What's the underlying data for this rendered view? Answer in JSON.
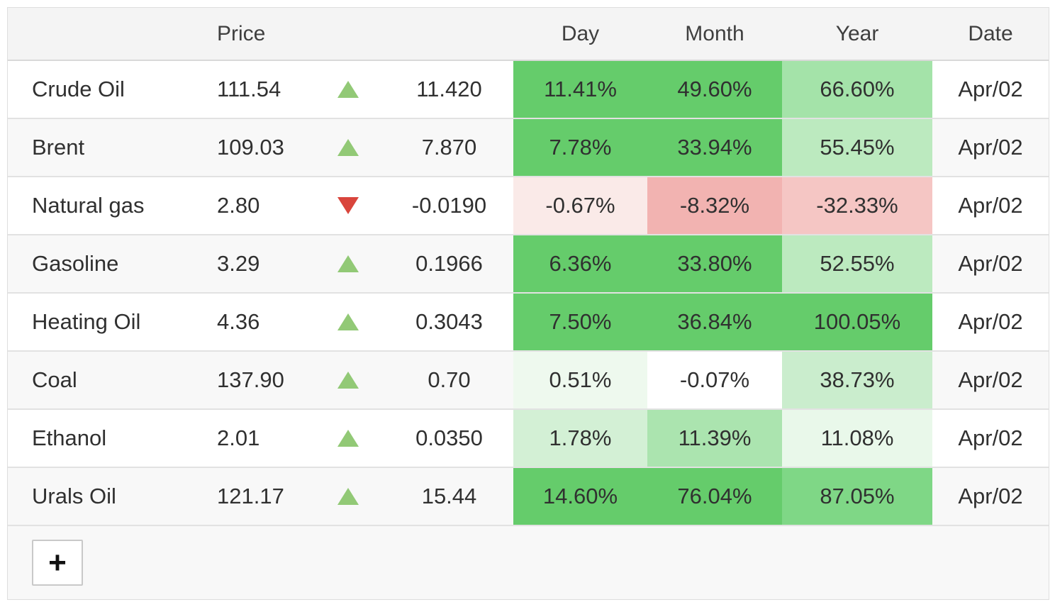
{
  "header": {
    "price": "Price",
    "day": "Day",
    "month": "Month",
    "year": "Year",
    "date": "Date"
  },
  "rows": [
    {
      "name": "Crude Oil",
      "price": "111.54",
      "direction": "up",
      "change": "11.420",
      "day": {
        "text": "11.41%",
        "bg": "#65cc6b"
      },
      "month": {
        "text": "49.60%",
        "bg": "#65cc6b"
      },
      "year": {
        "text": "66.60%",
        "bg": "#a4e3a9"
      },
      "date": "Apr/02"
    },
    {
      "name": "Brent",
      "price": "109.03",
      "direction": "up",
      "change": "7.870",
      "day": {
        "text": "7.78%",
        "bg": "#65cc6b"
      },
      "month": {
        "text": "33.94%",
        "bg": "#65cc6b"
      },
      "year": {
        "text": "55.45%",
        "bg": "#bceabf"
      },
      "date": "Apr/02"
    },
    {
      "name": "Natural gas",
      "price": "2.80",
      "direction": "down",
      "change": "-0.0190",
      "day": {
        "text": "-0.67%",
        "bg": "#faeae8"
      },
      "month": {
        "text": "-8.32%",
        "bg": "#f2b3b1"
      },
      "year": {
        "text": "-32.33%",
        "bg": "#f5c6c4"
      },
      "date": "Apr/02"
    },
    {
      "name": "Gasoline",
      "price": "3.29",
      "direction": "up",
      "change": "0.1966",
      "day": {
        "text": "6.36%",
        "bg": "#65cc6b"
      },
      "month": {
        "text": "33.80%",
        "bg": "#65cc6b"
      },
      "year": {
        "text": "52.55%",
        "bg": "#bceabf"
      },
      "date": "Apr/02"
    },
    {
      "name": "Heating Oil",
      "price": "4.36",
      "direction": "up",
      "change": "0.3043",
      "day": {
        "text": "7.50%",
        "bg": "#65cc6b"
      },
      "month": {
        "text": "36.84%",
        "bg": "#65cc6b"
      },
      "year": {
        "text": "100.05%",
        "bg": "#65cc6b"
      },
      "date": "Apr/02"
    },
    {
      "name": "Coal",
      "price": "137.90",
      "direction": "up",
      "change": "0.70",
      "day": {
        "text": "0.51%",
        "bg": "#eef9ee"
      },
      "month": {
        "text": "-0.07%",
        "bg": "#ffffff"
      },
      "year": {
        "text": "38.73%",
        "bg": "#caedcd"
      },
      "date": "Apr/02"
    },
    {
      "name": "Ethanol",
      "price": "2.01",
      "direction": "up",
      "change": "0.0350",
      "day": {
        "text": "1.78%",
        "bg": "#d3f0d5"
      },
      "month": {
        "text": "11.39%",
        "bg": "#abe4af"
      },
      "year": {
        "text": "11.08%",
        "bg": "#e9f8ea"
      },
      "date": "Apr/02"
    },
    {
      "name": "Urals Oil",
      "price": "121.17",
      "direction": "up",
      "change": "15.44",
      "day": {
        "text": "14.60%",
        "bg": "#65cc6b"
      },
      "month": {
        "text": "76.04%",
        "bg": "#65cc6b"
      },
      "year": {
        "text": "87.05%",
        "bg": "#7fd786"
      },
      "date": "Apr/02"
    }
  ],
  "footer": {
    "add_button_label": "+"
  },
  "colors": {
    "positive_base": "#65cc6b",
    "negative_base": "#f2b3b1",
    "up_triangle": "#92c976",
    "down_triangle": "#d9453c"
  }
}
